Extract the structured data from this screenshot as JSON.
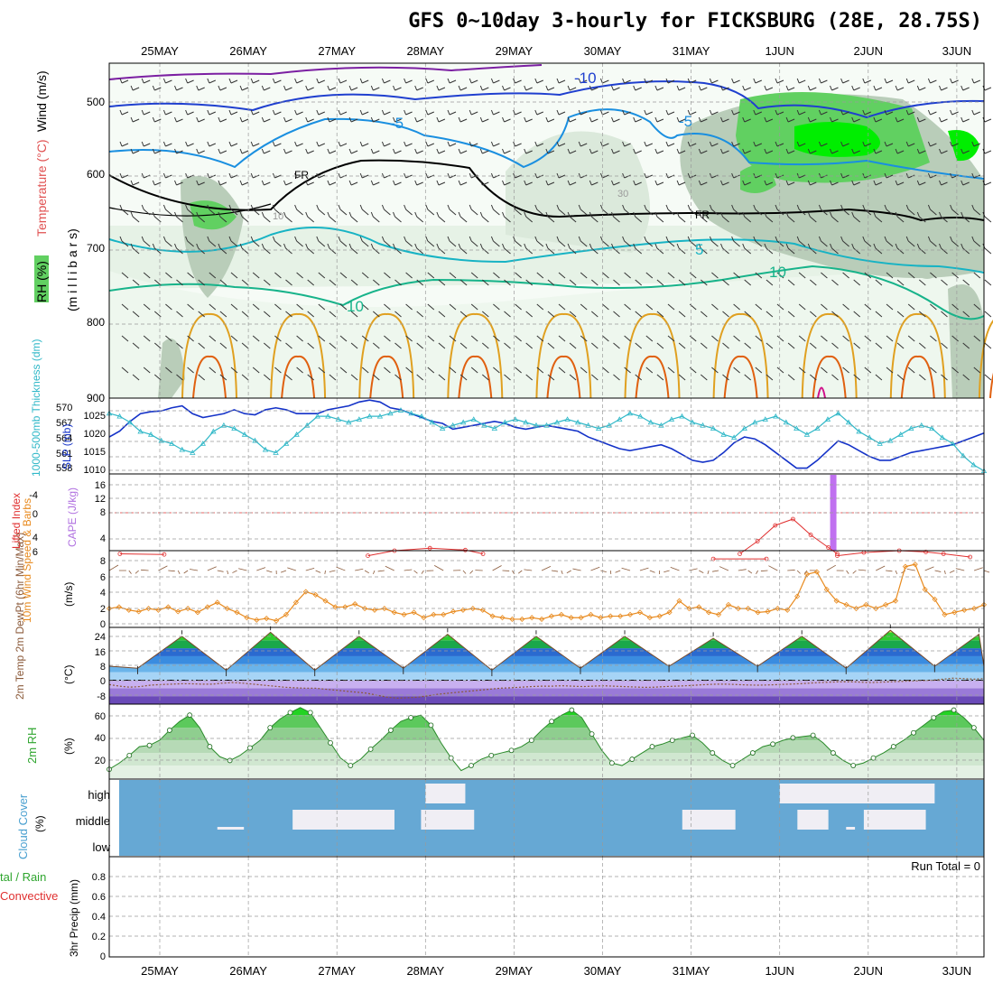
{
  "title": "GFS 0~10day 3-hourly for FICKSBURG (28E, 28.75S)",
  "date_labels": [
    "25MAY",
    "26MAY",
    "27MAY",
    "28MAY",
    "29MAY",
    "30MAY",
    "31MAY",
    "1JUN",
    "2JUN",
    "3JUN"
  ],
  "colors": {
    "grid": "#9a9a9a",
    "frame": "#000000",
    "rh_light": "#e6f2e6",
    "rh_mid": "#b9cdb9",
    "rh_green": "#61d061",
    "rh_bright": "#00ee00",
    "temp_cold": "#7b1fa2",
    "temp_m10": "#1f3fcf",
    "temp_m5": "#1a8fe0",
    "temp_5": "#17b3c4",
    "temp_10": "#17b38a",
    "temp_warm": "#e0a020",
    "temp_hot": "#e06010",
    "slp_line": "#1432c8",
    "thick_line": "#30b8c8",
    "li_line": "#e03030",
    "cape_bar": "#c070f0",
    "wind_line": "#e88a1e",
    "cloud_fill": "#66a8d4",
    "cloud_gap": "#f0eef4",
    "rh2m_fill": "#46c846",
    "dew_line": "#8b5a3a"
  },
  "panels": {
    "upper_air": {
      "label_rh": "RH (%)",
      "label_temp": "Temperature (°C)",
      "label_wind": "Wind (m/s)",
      "label_units": "(m i l l i b a r s)",
      "y_ticks": [
        "500",
        "600",
        "700",
        "800",
        "900"
      ],
      "contour_labels": [
        "-10",
        "-5",
        "-5",
        "FR",
        "FR",
        "5",
        "10",
        "10",
        "10",
        "30"
      ]
    },
    "slp": {
      "label_left": "1000-500mb Thickness (dm)",
      "label_right": "SLP (mb)",
      "left_ticks": [
        "570",
        "567",
        "564",
        "561",
        "558"
      ],
      "right_ticks": [
        "1025",
        "1020",
        "1015",
        "1010"
      ]
    },
    "cape": {
      "label_left": "Lifted Index",
      "label_right": "CAPE (J/kg)",
      "left_ticks": [
        "-4",
        "0",
        "4",
        "6"
      ],
      "right_ticks": [
        "16",
        "12",
        "8",
        "4"
      ]
    },
    "wind10": {
      "label": "10m Wind Speed & Barbs",
      "unit": "(m/s)",
      "ticks": [
        "8",
        "6",
        "4",
        "2",
        "0"
      ]
    },
    "temp2m": {
      "label": "2m Temp 2m DewPt (6hr Min/Max)",
      "unit": "(°C)",
      "ticks": [
        "24",
        "16",
        "8",
        "0",
        "-8"
      ]
    },
    "rh2m": {
      "label": "2m RH",
      "unit": "(%)",
      "ticks": [
        "60",
        "40",
        "20"
      ]
    },
    "cloud": {
      "label": "Cloud Cover",
      "unit": "(%)",
      "levels": [
        "high",
        "middle",
        "low"
      ]
    },
    "precip": {
      "label_main": "3hr Precip (mm)",
      "label_total": "tal / Rain",
      "label_conv": "Convective",
      "run_total": "Run Total = 0",
      "ticks": [
        "0.8",
        "0.6",
        "0.4",
        "0.2",
        "0"
      ]
    }
  },
  "chart_data": [
    {
      "type": "line",
      "name": "SLP and 1000-500mb Thickness",
      "series": [
        {
          "name": "SLP (mb)",
          "axis": "right",
          "values": [
            1018,
            1019.5,
            1022,
            1024,
            1024.5,
            1024.7,
            1025.5,
            1026,
            1024,
            1023,
            1023.5,
            1024,
            1025,
            1024,
            1023.7,
            1025,
            1025.5,
            1025,
            1024,
            1024,
            1024,
            1025,
            1025.5,
            1026,
            1027,
            1027.5,
            1027,
            1025.5,
            1025,
            1024,
            1023,
            1022,
            1021.5,
            1020,
            1020.5,
            1021,
            1021.5,
            1022,
            1021.5,
            1020.5,
            1020,
            1020.5,
            1021,
            1020.5,
            1020,
            1019.5,
            1018,
            1017,
            1016,
            1015,
            1014.5,
            1015,
            1015.5,
            1016,
            1015,
            1013.5,
            1012,
            1011.5,
            1012,
            1014,
            1016.5,
            1018,
            1017.5,
            1016,
            1014,
            1012,
            1010,
            1010,
            1012,
            1014.5,
            1017,
            1016,
            1014.5,
            1013,
            1012,
            1012,
            1013,
            1014,
            1014.5,
            1015,
            1015.5,
            1016,
            1017,
            1018,
            1019
          ]
        },
        {
          "name": "1000-500mb Thickness (dm)",
          "axis": "left",
          "values": [
            568,
            567.5,
            566.5,
            565,
            564.5,
            563.5,
            563,
            562,
            561.5,
            563,
            565,
            566,
            565.5,
            564.5,
            563.5,
            562,
            561.5,
            563,
            564.5,
            566,
            567.5,
            567.5,
            567,
            566.5,
            567,
            567.5,
            567.5,
            568,
            568.5,
            568,
            567.5,
            566.5,
            565.5,
            566,
            566.5,
            567,
            566,
            565.5,
            566.5,
            567,
            566.5,
            566,
            566,
            566.5,
            567,
            566.5,
            566,
            565.5,
            566,
            567,
            568,
            567.5,
            566.5,
            566,
            567,
            567.5,
            566.5,
            566,
            565.5,
            564.5,
            564,
            565.5,
            566.5,
            567,
            567.5,
            566.5,
            565.5,
            564.5,
            565.5,
            567,
            568,
            566.5,
            565,
            564,
            563,
            563.5,
            564.5,
            565.5,
            566,
            565.5,
            564,
            563,
            561,
            559.5,
            558.5
          ]
        }
      ],
      "ylim_left": [
        558,
        570.5
      ],
      "ylim_right": [
        1008.5,
        1028
      ],
      "x_labels": [
        "25MAY",
        "26MAY",
        "27MAY",
        "28MAY",
        "29MAY",
        "30MAY",
        "31MAY",
        "1JUN",
        "2JUN",
        "3JUN"
      ]
    },
    {
      "type": "bar",
      "name": "CAPE and Lifted Index",
      "cape_values": [
        {
          "day_index": 7.6,
          "value": 18
        }
      ],
      "lifted_index_segments": [
        {
          "x": [
            0.1,
            0.6
          ],
          "values": [
            6.5,
            6.6
          ]
        },
        {
          "x": [
            2.9,
            3.2,
            3.6,
            4.0,
            4.2
          ],
          "values": [
            6.8,
            6.0,
            5.6,
            5.9,
            6.5
          ]
        },
        {
          "x": [
            6.8,
            7.4
          ],
          "values": [
            7.3,
            7.3
          ]
        },
        {
          "x": [
            7.1,
            7.3,
            7.5,
            7.7,
            7.9,
            8.1,
            8.2
          ],
          "values": [
            6.5,
            4.5,
            2.0,
            1.0,
            3.5,
            5.5,
            6.5
          ]
        },
        {
          "x": [
            8.2,
            8.5,
            8.9,
            9.2,
            9.4,
            9.7
          ],
          "values": [
            6.8,
            6.3,
            6.0,
            6.2,
            6.5,
            7.0
          ]
        }
      ],
      "ylim_cape": [
        0,
        18
      ],
      "ylim_li": [
        6,
        -6
      ]
    },
    {
      "type": "line",
      "name": "10m Wind Speed",
      "series": [
        {
          "name": "Speed (m/s)",
          "values": [
            2.0,
            2.2,
            1.8,
            1.6,
            2.0,
            1.8,
            2.2,
            1.6,
            2.0,
            1.5,
            2.2,
            2.8,
            2.0,
            1.5,
            0.8,
            0.5,
            0.7,
            0.4,
            1.2,
            2.8,
            4.2,
            3.8,
            3.0,
            2.2,
            2.2,
            2.6,
            2.0,
            1.8,
            2.0,
            1.5,
            1.2,
            1.5,
            0.8,
            1.2,
            1.2,
            1.6,
            1.8,
            2.0,
            1.8,
            1.0,
            0.8,
            0.6,
            0.6,
            0.8,
            0.6,
            1.0,
            1.2,
            0.8,
            0.8,
            1.2,
            0.8,
            1.0,
            1.0,
            1.2,
            1.5,
            0.8,
            1.0,
            1.5,
            3.0,
            2.0,
            2.2,
            1.5,
            1.2,
            2.5,
            2.0,
            2.0,
            1.5,
            1.6,
            2.0,
            1.8,
            3.6,
            6.5,
            6.8,
            4.5,
            3.0,
            2.5,
            2.0,
            2.5,
            2.0,
            2.5,
            3.0,
            7.5,
            7.8,
            4.5,
            3.2,
            1.2,
            1.5,
            1.8,
            2.0,
            2.5
          ]
        }
      ],
      "ylim": [
        0,
        9
      ]
    },
    {
      "type": "area",
      "name": "2m Temp and DewPt",
      "series": [
        {
          "name": "2m Temp (°C)",
          "days": [
            0.3,
            1.3,
            2.3,
            3.3,
            4.3,
            5.3,
            6.3,
            7.3,
            8.3,
            9.3
          ],
          "max": [
            22,
            24,
            22,
            23,
            22,
            22,
            21,
            22,
            25,
            23
          ],
          "min": [
            6,
            5,
            5,
            6,
            5,
            6,
            7,
            7,
            6,
            7
          ]
        },
        {
          "name": "2m DewPt (°C)",
          "values": [
            -2.2,
            -3,
            -3.5,
            -3.2,
            -2.5,
            -2.2,
            -2,
            -1.8,
            -1.8,
            -2,
            -2,
            -1.5,
            -1.2,
            -1.5,
            -2,
            -2.5,
            -3,
            -3.5,
            -3.8,
            -4,
            -4,
            -4.5,
            -5,
            -5.5,
            -6,
            -6.5,
            -7.5,
            -8.5,
            -9,
            -8.8,
            -8.5,
            -7.8,
            -7,
            -6.5,
            -6,
            -5.5,
            -5,
            -4.5,
            -4,
            -3.8,
            -3.5,
            -3.2,
            -3,
            -3,
            -2.8,
            -3,
            -3.2,
            -3,
            -2.8,
            -3,
            -3.2,
            -3.4,
            -3.6,
            -3.5,
            -3.2,
            -3,
            -2.8,
            -2.5,
            -2.2,
            -2,
            -2,
            -2.2,
            -2.4,
            -2.5,
            -2.4,
            -2.2,
            -2,
            -1.8,
            -1.5,
            -1.2,
            -1,
            -0.8,
            -0.8,
            -1,
            -1.2,
            -1,
            -0.8,
            -0.6,
            -0.4,
            -0.2,
            0,
            0.5,
            1,
            0.8,
            0.5,
            0.8
          ]
        }
      ],
      "ylim": [
        -12,
        26
      ]
    },
    {
      "type": "area",
      "name": "2m RH",
      "series": [
        {
          "name": "2m RH (%)",
          "values": [
            17,
            22,
            28,
            35,
            36,
            40,
            48,
            55,
            60,
            50,
            35,
            27,
            24,
            28,
            34,
            40,
            50,
            57,
            62,
            66,
            62,
            50,
            38,
            26,
            20,
            25,
            33,
            40,
            48,
            55,
            58,
            60,
            52,
            38,
            26,
            16,
            20,
            25,
            28,
            30,
            32,
            35,
            40,
            48,
            55,
            60,
            64,
            58,
            45,
            32,
            22,
            20,
            25,
            30,
            35,
            37,
            40,
            42,
            44,
            38,
            30,
            24,
            20,
            25,
            30,
            35,
            37,
            40,
            42,
            43,
            44,
            38,
            30,
            24,
            20,
            22,
            26,
            30,
            35,
            40,
            46,
            52,
            58,
            63,
            64,
            58,
            50,
            40
          ]
        }
      ],
      "ylim": [
        10,
        68
      ]
    },
    {
      "type": "heatmap",
      "name": "Cloud Cover",
      "levels": [
        "high",
        "middle",
        "low"
      ],
      "base_fill_pct": 100,
      "high_gaps_days": [
        [
          3.55,
          4.0
        ],
        [
          7.55,
          9.3
        ]
      ],
      "middle_gaps_days": [
        [
          2.05,
          3.2
        ],
        [
          3.5,
          4.1
        ],
        [
          6.45,
          7.05
        ],
        [
          7.75,
          8.1
        ],
        [
          8.5,
          9.2
        ]
      ],
      "low_gaps_days": [
        [
          1.2,
          1.5
        ],
        [
          8.3,
          8.4
        ]
      ]
    },
    {
      "type": "bar",
      "name": "3hr Precip",
      "values": [],
      "ylim": [
        0,
        0.9
      ],
      "run_total": 0
    }
  ]
}
